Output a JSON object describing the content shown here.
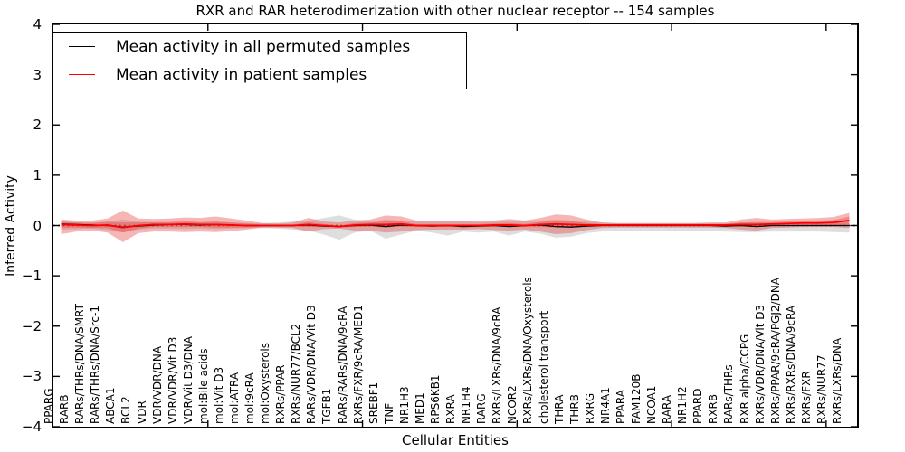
{
  "figure": {
    "title": "RXR and RAR heterodimerization with other nuclear receptor -- 154 samples",
    "xlabel": "Cellular Entities",
    "ylabel": "Inferred Activity",
    "background": "#ffffff",
    "frame_color": "#000000"
  },
  "legend": {
    "entries": [
      {
        "label": "Mean activity in all permuted samples",
        "color": "#000000"
      },
      {
        "label": "Mean activity in patient samples",
        "color": "#ff0000"
      }
    ],
    "position": "upper left"
  },
  "axes": {
    "y_ticks": [
      "4",
      "3",
      "2",
      "1",
      "0",
      "−1",
      "−2",
      "−3",
      "−4"
    ],
    "y_tick_values": [
      4,
      3,
      2,
      1,
      0,
      -1,
      -2,
      -3,
      -4
    ],
    "x_major_ticks": [
      10,
      20,
      30,
      40,
      50
    ],
    "grid": "off"
  },
  "chart_data": {
    "type": "line",
    "title": "RXR and RAR heterodimerization with other nuclear receptor -- 154 samples",
    "xlabel": "Cellular Entities",
    "ylabel": "Inferred Activity",
    "ylim": [
      -4,
      4
    ],
    "legend_position": "upper left",
    "categories": [
      "PPARG",
      "RARB",
      "RARs/THRs/DNA/SMRT",
      "RARs/THRs/DNA/Src-1",
      "ABCA1",
      "BCL2",
      "VDR",
      "VDR/VDR/DNA",
      "VDR/VDR/Vit D3",
      "VDR/Vit D3/DNA",
      "mol:Bile acids",
      "mol:Vit D3",
      "mol:ATRA",
      "mol:9cRA",
      "mol:Oxysterols",
      "RXRs/PPAR",
      "RXRs/NUR77/BCL2",
      "RARs/VDR/DNA/Vit D3",
      "TGFB1",
      "RARs/RARs/DNA/9cRA",
      "RXRs/FXR/9cRA/MED1",
      "SREBF1",
      "TNF",
      "NR1H3",
      "MED1",
      "RPS6KB1",
      "RXRA",
      "NR1H4",
      "RARG",
      "RXRs/LXRs/DNA/9cRA",
      "NCOR2",
      "RXRs/LXRs/DNA/Oxysterols",
      "cholesterol transport",
      "THRA",
      "THRB",
      "RXRG",
      "NR4A1",
      "PPARA",
      "FAM120B",
      "NCOA1",
      "RARA",
      "NR1H2",
      "PPARD",
      "RXRB",
      "RARs/THRs",
      "RXR alpha/CCPG",
      "RXRs/VDR/DNA/Vit D3",
      "RXRs/PPAR/9cRA/PGJ2/DNA",
      "RXRs/RXRs/DNA/9cRA",
      "RXRs/FXR",
      "RXRs/NUR77",
      "RXRs/LXRs/DNA"
    ],
    "series": [
      {
        "name": "Mean activity in all permuted samples",
        "color": "#000000",
        "values": [
          0.03,
          0.02,
          0.01,
          0.0,
          -0.03,
          -0.01,
          0.01,
          0.02,
          0.02,
          0.01,
          0.02,
          0.01,
          0.0,
          0.0,
          0.0,
          0.0,
          0.01,
          -0.01,
          -0.02,
          0.0,
          0.01,
          -0.02,
          0.01,
          0.0,
          -0.01,
          0.0,
          -0.02,
          -0.01,
          0.0,
          -0.02,
          0.0,
          0.01,
          -0.02,
          -0.03,
          -0.01,
          0.0,
          0.0,
          0.0,
          0.0,
          0.0,
          0.0,
          0.0,
          0.0,
          -0.01,
          0.0,
          -0.02,
          0.0,
          0.0,
          0.0,
          0.0,
          0.0,
          0.0
        ]
      },
      {
        "name": "Mean activity in patient samples",
        "color": "#ff0000",
        "values": [
          0.02,
          0.01,
          0.0,
          0.01,
          -0.04,
          0.0,
          0.02,
          0.02,
          0.03,
          0.02,
          0.02,
          0.01,
          0.0,
          0.0,
          0.0,
          0.0,
          0.02,
          0.0,
          -0.02,
          0.01,
          0.02,
          0.02,
          0.03,
          0.0,
          0.0,
          0.0,
          0.0,
          0.0,
          0.01,
          0.01,
          0.0,
          0.02,
          0.03,
          0.02,
          0.01,
          0.01,
          0.01,
          0.01,
          0.01,
          0.01,
          0.01,
          0.01,
          0.01,
          0.01,
          0.02,
          0.02,
          0.03,
          0.04,
          0.05,
          0.05,
          0.06,
          0.1
        ]
      }
    ],
    "bands": [
      {
        "name": "permuted-samples-std-band",
        "color": "#999999",
        "opacity": 0.32,
        "upper": [
          0.06,
          0.06,
          0.06,
          0.08,
          0.12,
          0.08,
          0.06,
          0.06,
          0.07,
          0.06,
          0.07,
          0.06,
          0.05,
          0.05,
          0.06,
          0.08,
          0.1,
          0.15,
          0.2,
          0.12,
          0.08,
          0.12,
          0.1,
          0.08,
          0.1,
          0.08,
          0.08,
          0.07,
          0.08,
          0.1,
          0.08,
          0.1,
          0.12,
          0.1,
          0.08,
          0.06,
          0.05,
          0.05,
          0.05,
          0.05,
          0.05,
          0.05,
          0.05,
          0.05,
          0.06,
          0.06,
          0.05,
          0.05,
          0.05,
          0.05,
          0.05,
          0.05
        ],
        "lower": [
          -0.08,
          -0.07,
          -0.06,
          -0.09,
          -0.14,
          -0.08,
          -0.06,
          -0.06,
          -0.07,
          -0.06,
          -0.07,
          -0.06,
          -0.05,
          -0.05,
          -0.06,
          -0.08,
          -0.1,
          -0.18,
          -0.28,
          -0.14,
          -0.1,
          -0.26,
          -0.18,
          -0.1,
          -0.14,
          -0.2,
          -0.12,
          -0.14,
          -0.12,
          -0.2,
          -0.12,
          -0.16,
          -0.24,
          -0.22,
          -0.15,
          -0.12,
          -0.11,
          -0.11,
          -0.11,
          -0.11,
          -0.11,
          -0.11,
          -0.11,
          -0.12,
          -0.13,
          -0.13,
          -0.12,
          -0.12,
          -0.12,
          -0.12,
          -0.13,
          -0.14
        ]
      },
      {
        "name": "patient-samples-std-band",
        "color": "#e84040",
        "opacity": 0.38,
        "upper": [
          0.12,
          0.1,
          0.1,
          0.14,
          0.3,
          0.14,
          0.13,
          0.14,
          0.16,
          0.15,
          0.18,
          0.14,
          0.1,
          0.05,
          0.04,
          0.06,
          0.15,
          0.08,
          0.06,
          0.1,
          0.12,
          0.2,
          0.18,
          0.1,
          0.1,
          0.08,
          0.08,
          0.08,
          0.1,
          0.13,
          0.1,
          0.15,
          0.22,
          0.2,
          0.12,
          0.06,
          0.05,
          0.05,
          0.05,
          0.05,
          0.05,
          0.05,
          0.06,
          0.06,
          0.12,
          0.15,
          0.12,
          0.13,
          0.14,
          0.15,
          0.17,
          0.25
        ],
        "lower": [
          -0.17,
          -0.12,
          -0.1,
          -0.14,
          -0.33,
          -0.15,
          -0.12,
          -0.12,
          -0.13,
          -0.12,
          -0.13,
          -0.11,
          -0.08,
          -0.04,
          -0.04,
          -0.05,
          -0.12,
          -0.07,
          -0.06,
          -0.1,
          -0.1,
          -0.14,
          -0.12,
          -0.09,
          -0.08,
          -0.08,
          -0.08,
          -0.07,
          -0.09,
          -0.1,
          -0.08,
          -0.12,
          -0.17,
          -0.15,
          -0.09,
          -0.05,
          -0.04,
          -0.04,
          -0.04,
          -0.04,
          -0.04,
          -0.04,
          -0.04,
          -0.05,
          -0.08,
          -0.1,
          -0.05,
          -0.04,
          -0.03,
          -0.03,
          -0.03,
          -0.05
        ]
      },
      {
        "name": "patient-samples-inner-band",
        "color": "#e84040",
        "opacity": 0.38,
        "half_width": [
          0.06,
          0.05,
          0.05,
          0.06,
          0.1,
          0.06,
          0.05,
          0.05,
          0.06,
          0.05,
          0.06,
          0.05,
          0.04,
          0.02,
          0.02,
          0.02,
          0.05,
          0.03,
          0.02,
          0.04,
          0.04,
          0.06,
          0.05,
          0.03,
          0.03,
          0.03,
          0.03,
          0.03,
          0.03,
          0.04,
          0.03,
          0.05,
          0.07,
          0.06,
          0.04,
          0.02,
          0.02,
          0.02,
          0.02,
          0.02,
          0.02,
          0.02,
          0.02,
          0.02,
          0.04,
          0.05,
          0.04,
          0.04,
          0.04,
          0.04,
          0.05,
          0.08
        ]
      }
    ],
    "zero_line": {
      "y": 0,
      "style": "dotted",
      "color": "#000000"
    }
  }
}
